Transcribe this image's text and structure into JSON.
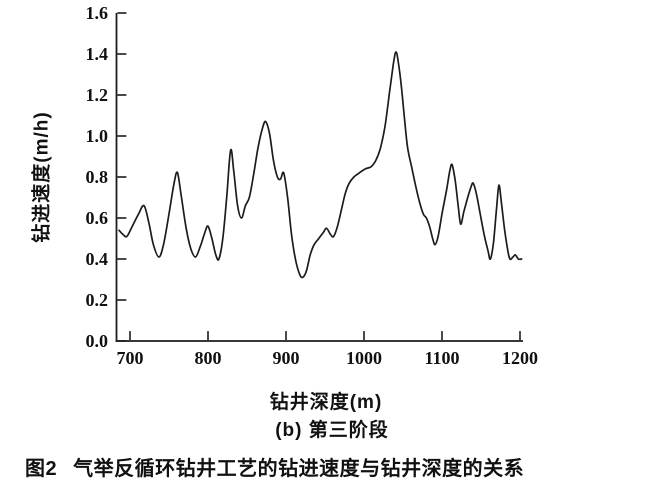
{
  "figure": {
    "fig_label": "图2",
    "fig_title": "气举反循环钻井工艺的钻进速度与钻井深度的关系",
    "subcaption": "(b) 第三阶段"
  },
  "chart_data": {
    "type": "line",
    "title": "",
    "xlabel": "钻井深度(m)",
    "ylabel": "钻进速度(m/h)",
    "xlim": [
      700,
      1200
    ],
    "ylim": [
      0.0,
      1.6
    ],
    "xticks": [
      700,
      800,
      900,
      1000,
      1100,
      1200
    ],
    "yticks": [
      0.0,
      0.2,
      0.4,
      0.6,
      0.8,
      1.0,
      1.2,
      1.4,
      1.6
    ],
    "grid": false,
    "legend_position": "none",
    "line_color": "#1c1c1c",
    "axis_color": "#1c1c1c",
    "series": [
      {
        "name": "钻进速度",
        "x": [
          686,
          691,
          696,
          703,
          711,
          718,
          724,
          730,
          737,
          743,
          750,
          757,
          761,
          766,
          772,
          778,
          784,
          790,
          796,
          800,
          805,
          810,
          814,
          819,
          824,
          829,
          833,
          838,
          843,
          848,
          853,
          858,
          864,
          870,
          874,
          879,
          884,
          889,
          893,
          897,
          902,
          907,
          912,
          917,
          921,
          926,
          931,
          936,
          942,
          948,
          952,
          957,
          961,
          966,
          971,
          976,
          981,
          987,
          994,
          1002,
          1009,
          1015,
          1021,
          1027,
          1033,
          1038,
          1041,
          1044,
          1048,
          1052,
          1056,
          1061,
          1066,
          1071,
          1076,
          1080,
          1084,
          1088,
          1091,
          1095,
          1100,
          1106,
          1110,
          1113,
          1117,
          1121,
          1124,
          1128,
          1133,
          1137,
          1140,
          1144,
          1149,
          1154,
          1159,
          1162,
          1166,
          1170,
          1173,
          1176,
          1180,
          1184,
          1187,
          1191,
          1194,
          1198,
          1202
        ],
        "y": [
          0.54,
          0.52,
          0.51,
          0.56,
          0.62,
          0.66,
          0.58,
          0.47,
          0.41,
          0.47,
          0.62,
          0.78,
          0.82,
          0.7,
          0.55,
          0.45,
          0.41,
          0.46,
          0.53,
          0.56,
          0.5,
          0.42,
          0.4,
          0.5,
          0.7,
          0.93,
          0.83,
          0.66,
          0.6,
          0.66,
          0.7,
          0.8,
          0.94,
          1.04,
          1.07,
          1.01,
          0.88,
          0.8,
          0.79,
          0.82,
          0.7,
          0.52,
          0.4,
          0.33,
          0.31,
          0.34,
          0.42,
          0.47,
          0.5,
          0.53,
          0.55,
          0.52,
          0.51,
          0.56,
          0.64,
          0.72,
          0.77,
          0.8,
          0.82,
          0.84,
          0.85,
          0.88,
          0.94,
          1.05,
          1.22,
          1.36,
          1.41,
          1.36,
          1.24,
          1.08,
          0.94,
          0.85,
          0.76,
          0.68,
          0.62,
          0.6,
          0.56,
          0.5,
          0.47,
          0.51,
          0.62,
          0.74,
          0.83,
          0.86,
          0.78,
          0.65,
          0.57,
          0.63,
          0.7,
          0.75,
          0.77,
          0.72,
          0.62,
          0.52,
          0.44,
          0.4,
          0.48,
          0.65,
          0.76,
          0.68,
          0.55,
          0.45,
          0.4,
          0.41,
          0.42,
          0.4,
          0.4
        ]
      }
    ]
  }
}
